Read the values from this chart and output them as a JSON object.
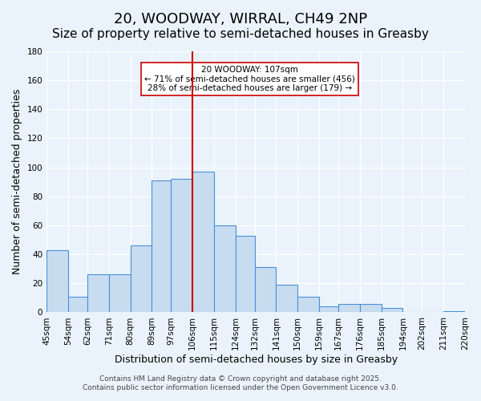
{
  "title": "20, WOODWAY, WIRRAL, CH49 2NP",
  "subtitle": "Size of property relative to semi-detached houses in Greasby",
  "xlabel": "Distribution of semi-detached houses by size in Greasby",
  "ylabel": "Number of semi-detached properties",
  "bins": [
    45,
    54,
    62,
    71,
    80,
    89,
    97,
    106,
    115,
    124,
    132,
    141,
    150,
    159,
    167,
    176,
    185,
    194,
    202,
    211,
    220
  ],
  "counts": [
    43,
    11,
    26,
    26,
    46,
    91,
    92,
    97,
    60,
    53,
    31,
    19,
    11,
    4,
    6,
    6,
    3,
    0,
    0,
    1
  ],
  "bar_color": "#c8dcf0",
  "bar_edge_color": "#4a90d9",
  "vline_x": 106,
  "vline_color": "#cc0000",
  "annotation_title": "20 WOODWAY: 107sqm",
  "annotation_line1": "← 71% of semi-detached houses are smaller (456)",
  "annotation_line2": "28% of semi-detached houses are larger (179) →",
  "annotation_box_color": "#ffffff",
  "annotation_box_edge": "#cc0000",
  "ylim": [
    0,
    180
  ],
  "yticks": [
    0,
    20,
    40,
    60,
    80,
    100,
    120,
    140,
    160,
    180
  ],
  "tick_labels": [
    "45sqm",
    "54sqm",
    "62sqm",
    "71sqm",
    "80sqm",
    "89sqm",
    "97sqm",
    "106sqm",
    "115sqm",
    "124sqm",
    "132sqm",
    "141sqm",
    "150sqm",
    "159sqm",
    "167sqm",
    "176sqm",
    "185sqm",
    "194sqm",
    "202sqm",
    "211sqm",
    "220sqm"
  ],
  "footer_line1": "Contains HM Land Registry data © Crown copyright and database right 2025.",
  "footer_line2": "Contains public sector information licensed under the Open Government Licence v3.0.",
  "bg_color": "#eaf3fb",
  "plot_bg_color": "#eaf3fb",
  "grid_color": "#ffffff",
  "title_fontsize": 13,
  "subtitle_fontsize": 11,
  "axis_label_fontsize": 9,
  "tick_fontsize": 7.5,
  "footer_fontsize": 6.5
}
